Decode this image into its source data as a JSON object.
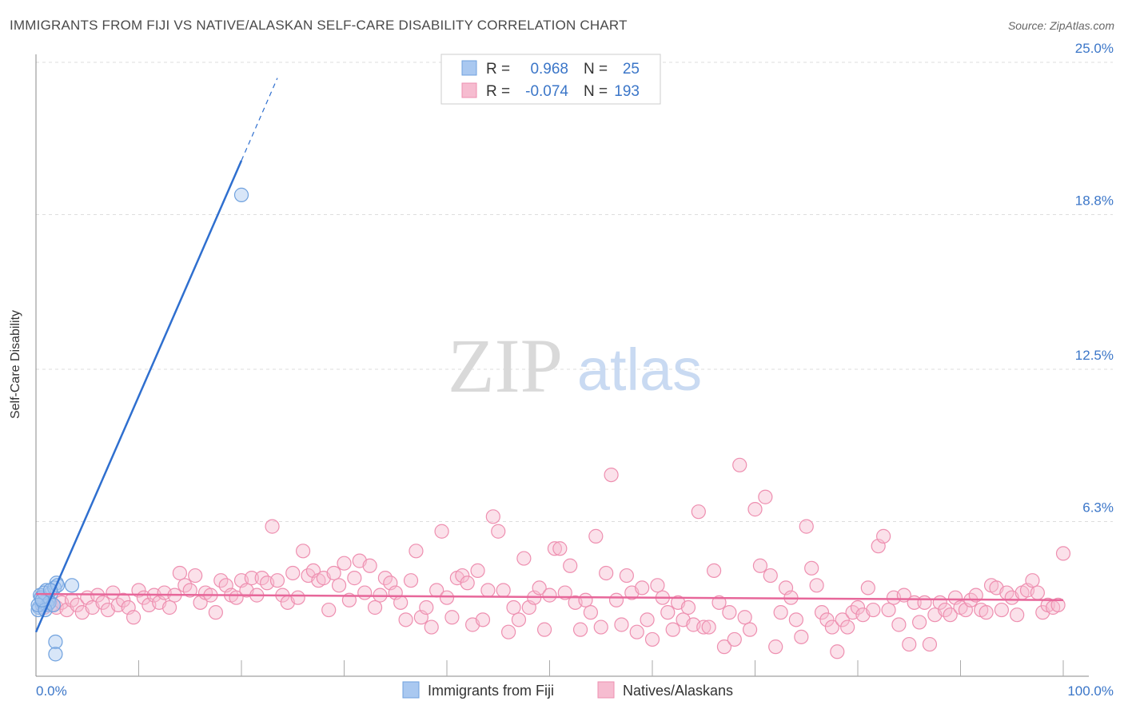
{
  "header": {
    "title": "IMMIGRANTS FROM FIJI VS NATIVE/ALASKAN SELF-CARE DISABILITY CORRELATION CHART",
    "source": "Source: ZipAtlas.com"
  },
  "watermark": {
    "part1": "ZIP",
    "part2": "atlas"
  },
  "stats": {
    "r_label": "R =",
    "n_label": "N =",
    "fiji": {
      "r": "0.968",
      "n": "25"
    },
    "native": {
      "r": "-0.074",
      "n": "193"
    }
  },
  "colors": {
    "fiji_fill": "#a9c8f0",
    "fiji_stroke": "#6fa1de",
    "fiji_line": "#2f6fcf",
    "native_fill": "#f6bcd0",
    "native_stroke": "#ee8fb0",
    "native_line": "#e7679a",
    "axis_text": "#3b76c8",
    "grid": "#dddddd"
  },
  "chart_data": {
    "type": "scatter",
    "title": "IMMIGRANTS FROM FIJI VS NATIVE/ALASKAN SELF-CARE DISABILITY CORRELATION CHART",
    "xlabel": "",
    "ylabel": "Self-Care Disability",
    "xlim": [
      0,
      100
    ],
    "ylim": [
      0,
      25.0
    ],
    "x_ticks": [
      "0.0%",
      "100.0%"
    ],
    "y_ticks": [
      {
        "value": 6.3,
        "label": "6.3%"
      },
      {
        "value": 12.5,
        "label": "12.5%"
      },
      {
        "value": 18.8,
        "label": "18.8%"
      },
      {
        "value": 25.0,
        "label": "25.0%"
      }
    ],
    "grid": true,
    "legend_position": "bottom-center",
    "series": [
      {
        "name": "Immigrants from Fiji",
        "r": 0.968,
        "n": 25,
        "trend": {
          "x0": 0.0,
          "y0": 1.8,
          "x1": 20.0,
          "y1": 21.0,
          "dash_to_x": 23.5
        },
        "points": [
          [
            20.0,
            19.6
          ],
          [
            1.0,
            3.5
          ],
          [
            1.5,
            3.4
          ],
          [
            2.0,
            3.8
          ],
          [
            3.5,
            3.7
          ],
          [
            0.3,
            2.8
          ],
          [
            0.6,
            2.9
          ],
          [
            0.9,
            3.0
          ],
          [
            1.2,
            3.1
          ],
          [
            0.2,
            2.7
          ],
          [
            0.4,
            3.3
          ],
          [
            0.7,
            3.0
          ],
          [
            1.1,
            2.9
          ],
          [
            0.5,
            3.2
          ],
          [
            0.8,
            3.4
          ],
          [
            1.3,
            3.0
          ],
          [
            0.2,
            2.9
          ],
          [
            0.9,
            2.7
          ],
          [
            1.7,
            2.9
          ],
          [
            0.6,
            3.1
          ],
          [
            1.8,
            3.6
          ],
          [
            2.1,
            3.7
          ],
          [
            1.4,
            3.5
          ],
          [
            1.9,
            1.4
          ],
          [
            1.9,
            0.9
          ]
        ]
      },
      {
        "name": "Natives/Alaskans",
        "r": -0.074,
        "n": 193,
        "trend": {
          "x0": 0.0,
          "y0": 3.35,
          "x1": 100.0,
          "y1": 3.1
        },
        "points": [
          [
            0.8,
            2.8
          ],
          [
            1.5,
            2.9
          ],
          [
            2.0,
            2.8
          ],
          [
            2.5,
            3.0
          ],
          [
            3.0,
            2.7
          ],
          [
            3.5,
            3.1
          ],
          [
            4.0,
            2.9
          ],
          [
            4.5,
            2.6
          ],
          [
            5.0,
            3.2
          ],
          [
            5.5,
            2.8
          ],
          [
            6.0,
            3.3
          ],
          [
            6.5,
            3.0
          ],
          [
            7.0,
            2.7
          ],
          [
            7.5,
            3.4
          ],
          [
            8.0,
            2.9
          ],
          [
            8.5,
            3.1
          ],
          [
            9.0,
            2.8
          ],
          [
            9.5,
            2.4
          ],
          [
            10.0,
            3.5
          ],
          [
            10.5,
            3.2
          ],
          [
            11.0,
            2.9
          ],
          [
            11.5,
            3.3
          ],
          [
            12.0,
            3.0
          ],
          [
            12.5,
            3.4
          ],
          [
            13.0,
            2.8
          ],
          [
            13.5,
            3.3
          ],
          [
            14.0,
            4.2
          ],
          [
            14.5,
            3.7
          ],
          [
            15.0,
            3.5
          ],
          [
            15.5,
            4.1
          ],
          [
            16.0,
            3.0
          ],
          [
            16.5,
            3.4
          ],
          [
            17.0,
            3.3
          ],
          [
            17.5,
            2.6
          ],
          [
            18.0,
            3.9
          ],
          [
            18.5,
            3.7
          ],
          [
            19.0,
            3.3
          ],
          [
            19.5,
            3.2
          ],
          [
            20.0,
            3.9
          ],
          [
            20.5,
            3.5
          ],
          [
            21.0,
            4.0
          ],
          [
            21.5,
            3.3
          ],
          [
            22.0,
            4.0
          ],
          [
            22.5,
            3.8
          ],
          [
            23.0,
            6.1
          ],
          [
            23.5,
            3.9
          ],
          [
            24.0,
            3.3
          ],
          [
            24.5,
            3.0
          ],
          [
            25.0,
            4.2
          ],
          [
            25.5,
            3.2
          ],
          [
            26.0,
            5.1
          ],
          [
            26.5,
            4.1
          ],
          [
            27.0,
            4.3
          ],
          [
            27.5,
            3.9
          ],
          [
            28.0,
            4.0
          ],
          [
            28.5,
            2.7
          ],
          [
            29.0,
            4.2
          ],
          [
            29.5,
            3.7
          ],
          [
            30.0,
            4.6
          ],
          [
            30.5,
            3.1
          ],
          [
            31.0,
            4.0
          ],
          [
            31.5,
            4.7
          ],
          [
            32.0,
            3.4
          ],
          [
            32.5,
            4.5
          ],
          [
            33.0,
            2.8
          ],
          [
            33.5,
            3.3
          ],
          [
            34.0,
            4.0
          ],
          [
            34.5,
            3.8
          ],
          [
            35.0,
            3.4
          ],
          [
            35.5,
            3.0
          ],
          [
            36.0,
            2.3
          ],
          [
            36.5,
            3.9
          ],
          [
            37.0,
            5.1
          ],
          [
            37.5,
            2.4
          ],
          [
            38.0,
            2.8
          ],
          [
            38.5,
            2.0
          ],
          [
            39.0,
            3.5
          ],
          [
            39.5,
            5.9
          ],
          [
            40.0,
            3.2
          ],
          [
            40.5,
            2.4
          ],
          [
            41.0,
            4.0
          ],
          [
            41.5,
            4.1
          ],
          [
            42.0,
            3.8
          ],
          [
            42.5,
            2.1
          ],
          [
            43.0,
            4.3
          ],
          [
            43.5,
            2.3
          ],
          [
            44.0,
            3.5
          ],
          [
            44.5,
            6.5
          ],
          [
            45.0,
            5.9
          ],
          [
            45.5,
            3.5
          ],
          [
            46.0,
            1.8
          ],
          [
            46.5,
            2.8
          ],
          [
            47.0,
            2.3
          ],
          [
            47.5,
            4.8
          ],
          [
            48.0,
            2.8
          ],
          [
            48.5,
            3.2
          ],
          [
            49.0,
            3.6
          ],
          [
            49.5,
            1.9
          ],
          [
            50.0,
            3.3
          ],
          [
            50.5,
            5.2
          ],
          [
            51.0,
            5.2
          ],
          [
            51.5,
            3.4
          ],
          [
            52.0,
            4.5
          ],
          [
            52.5,
            3.0
          ],
          [
            53.0,
            1.9
          ],
          [
            53.5,
            3.1
          ],
          [
            54.0,
            2.6
          ],
          [
            54.5,
            5.7
          ],
          [
            55.0,
            2.0
          ],
          [
            55.5,
            4.2
          ],
          [
            56.0,
            8.2
          ],
          [
            56.5,
            3.1
          ],
          [
            57.0,
            2.1
          ],
          [
            57.5,
            4.1
          ],
          [
            58.0,
            3.4
          ],
          [
            58.5,
            1.8
          ],
          [
            59.0,
            3.6
          ],
          [
            59.5,
            2.3
          ],
          [
            60.0,
            1.5
          ],
          [
            60.5,
            3.7
          ],
          [
            61.0,
            3.2
          ],
          [
            61.5,
            2.6
          ],
          [
            62.0,
            1.9
          ],
          [
            62.5,
            3.0
          ],
          [
            63.0,
            2.3
          ],
          [
            63.5,
            2.8
          ],
          [
            64.0,
            2.1
          ],
          [
            64.5,
            6.7
          ],
          [
            65.0,
            2.0
          ],
          [
            65.5,
            2.0
          ],
          [
            66.0,
            4.3
          ],
          [
            66.5,
            3.0
          ],
          [
            67.0,
            1.2
          ],
          [
            67.5,
            2.6
          ],
          [
            68.0,
            1.5
          ],
          [
            68.5,
            8.6
          ],
          [
            69.0,
            2.4
          ],
          [
            69.5,
            1.9
          ],
          [
            70.0,
            6.8
          ],
          [
            70.5,
            4.5
          ],
          [
            71.0,
            7.3
          ],
          [
            71.5,
            4.1
          ],
          [
            72.0,
            1.2
          ],
          [
            72.5,
            2.6
          ],
          [
            73.0,
            3.6
          ],
          [
            73.5,
            3.2
          ],
          [
            74.0,
            2.3
          ],
          [
            74.5,
            1.6
          ],
          [
            75.0,
            6.1
          ],
          [
            75.5,
            4.4
          ],
          [
            76.0,
            3.7
          ],
          [
            76.5,
            2.6
          ],
          [
            77.0,
            2.3
          ],
          [
            77.5,
            2.0
          ],
          [
            78.0,
            1.0
          ],
          [
            78.5,
            2.3
          ],
          [
            79.0,
            2.0
          ],
          [
            79.5,
            2.6
          ],
          [
            80.0,
            2.8
          ],
          [
            80.5,
            2.5
          ],
          [
            81.0,
            3.6
          ],
          [
            81.5,
            2.7
          ],
          [
            82.0,
            5.3
          ],
          [
            82.5,
            5.7
          ],
          [
            83.0,
            2.7
          ],
          [
            83.5,
            3.2
          ],
          [
            84.0,
            2.1
          ],
          [
            84.5,
            3.3
          ],
          [
            85.0,
            1.3
          ],
          [
            85.5,
            3.0
          ],
          [
            86.0,
            2.2
          ],
          [
            86.5,
            3.0
          ],
          [
            87.0,
            1.3
          ],
          [
            87.5,
            2.5
          ],
          [
            88.0,
            3.0
          ],
          [
            88.5,
            2.7
          ],
          [
            89.0,
            2.5
          ],
          [
            89.5,
            3.2
          ],
          [
            90.0,
            2.8
          ],
          [
            90.5,
            2.7
          ],
          [
            91.0,
            3.1
          ],
          [
            91.5,
            3.3
          ],
          [
            92.0,
            2.7
          ],
          [
            92.5,
            2.6
          ],
          [
            93.0,
            3.7
          ],
          [
            93.5,
            3.6
          ],
          [
            94.0,
            2.7
          ],
          [
            94.5,
            3.4
          ],
          [
            95.0,
            3.2
          ],
          [
            95.5,
            2.5
          ],
          [
            96.0,
            3.4
          ],
          [
            96.5,
            3.5
          ],
          [
            97.0,
            3.9
          ],
          [
            97.5,
            3.4
          ],
          [
            98.0,
            2.6
          ],
          [
            98.5,
            2.9
          ],
          [
            99.0,
            2.8
          ],
          [
            99.5,
            2.9
          ],
          [
            100.0,
            5.0
          ]
        ]
      }
    ]
  }
}
